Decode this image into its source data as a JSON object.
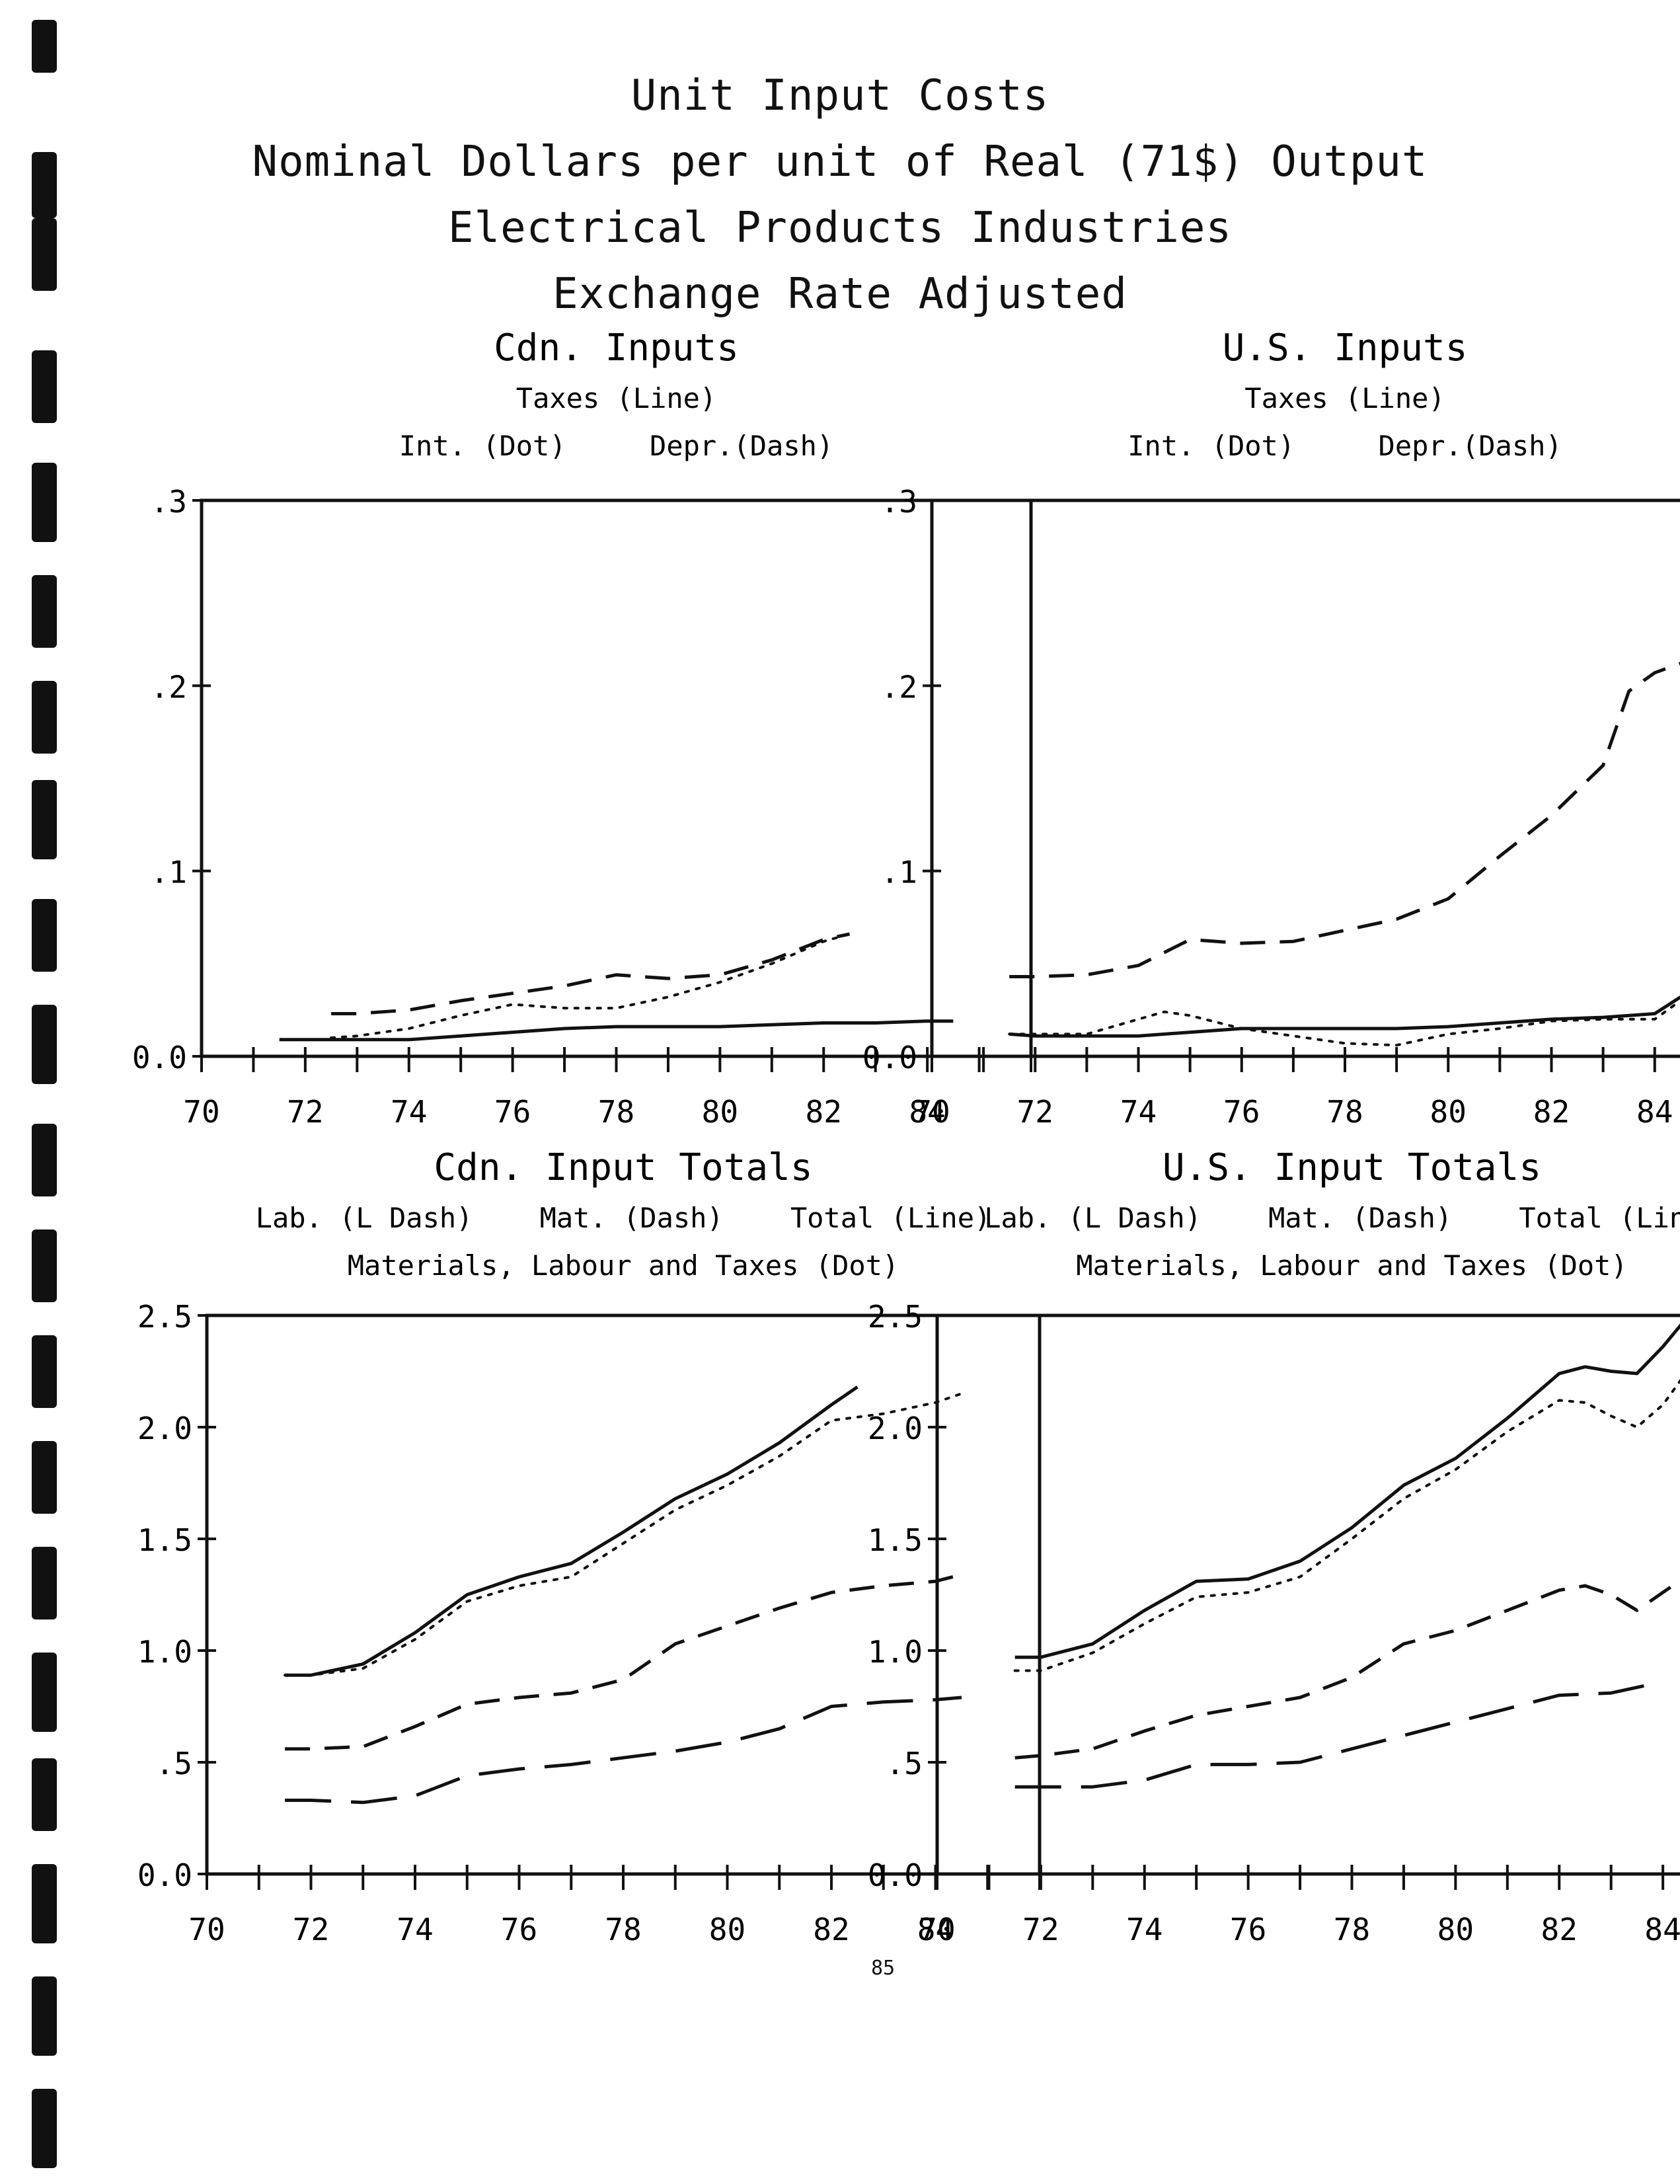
{
  "title_lines": [
    "Unit Input Costs",
    "Nominal Dollars per unit of Real (71$) Output",
    "Electrical Products Industries",
    "Exchange Rate Adjusted"
  ],
  "page_number": "85",
  "chart_data": [
    {
      "type": "line",
      "title": "Cdn. Inputs",
      "legend_lines": [
        "Taxes (Line)",
        "Int. (Dot)     Depr.(Dash)"
      ],
      "xlim": [
        70,
        86
      ],
      "ylim": [
        0,
        0.3
      ],
      "x_ticks": [
        "70",
        "72",
        "74",
        "76",
        "78",
        "80",
        "82",
        "84"
      ],
      "y_ticks": [
        "0.0",
        ".1",
        ".2",
        ".3"
      ],
      "y_tick_values": [
        0,
        0.1,
        0.2,
        0.3
      ],
      "series": [
        {
          "name": "Taxes",
          "style": "solid",
          "x": [
            71.5,
            72,
            73,
            74,
            75,
            76,
            77,
            78,
            79,
            80,
            81,
            82,
            83,
            84,
            84.5
          ],
          "y": [
            0.009,
            0.009,
            0.009,
            0.009,
            0.011,
            0.013,
            0.015,
            0.016,
            0.016,
            0.016,
            0.017,
            0.018,
            0.018,
            0.019,
            0.019
          ]
        },
        {
          "name": "Int.",
          "style": "dot",
          "x": [
            72.5,
            73,
            74,
            75,
            76,
            77,
            78,
            79,
            80,
            81,
            82,
            82.5
          ],
          "y": [
            0.01,
            0.011,
            0.015,
            0.022,
            0.028,
            0.026,
            0.026,
            0.032,
            0.04,
            0.05,
            0.062,
            0.066
          ]
        },
        {
          "name": "Depr.",
          "style": "dash",
          "x": [
            72.5,
            73,
            74,
            75,
            76,
            77,
            78,
            79,
            80,
            81,
            82,
            82.5
          ],
          "y": [
            0.023,
            0.023,
            0.025,
            0.03,
            0.034,
            0.038,
            0.044,
            0.042,
            0.044,
            0.052,
            0.063,
            0.066
          ]
        }
      ]
    },
    {
      "type": "line",
      "title": "U.S. Inputs",
      "legend_lines": [
        "Taxes (Line)",
        "Int. (Dot)     Depr.(Dash)"
      ],
      "xlim": [
        70,
        86
      ],
      "ylim": [
        0,
        0.3
      ],
      "x_ticks": [
        "70",
        "72",
        "74",
        "76",
        "78",
        "80",
        "82",
        "84"
      ],
      "y_ticks": [
        "0.0",
        ".1",
        ".2",
        ".3"
      ],
      "y_tick_values": [
        0,
        0.1,
        0.2,
        0.3
      ],
      "series": [
        {
          "name": "Taxes",
          "style": "solid",
          "x": [
            71.5,
            72,
            73,
            74,
            75,
            76,
            77,
            78,
            79,
            80,
            81,
            82,
            83,
            84,
            84.5
          ],
          "y": [
            0.012,
            0.011,
            0.011,
            0.011,
            0.013,
            0.015,
            0.015,
            0.015,
            0.015,
            0.016,
            0.018,
            0.02,
            0.021,
            0.023,
            0.032
          ]
        },
        {
          "name": "Int.",
          "style": "dot",
          "x": [
            71.5,
            72,
            73,
            74,
            74.5,
            75,
            76,
            77,
            78,
            79,
            80,
            81,
            82,
            83,
            84,
            84.5
          ],
          "y": [
            0.012,
            0.012,
            0.012,
            0.02,
            0.024,
            0.022,
            0.015,
            0.011,
            0.007,
            0.006,
            0.012,
            0.015,
            0.019,
            0.02,
            0.02,
            0.03
          ]
        },
        {
          "name": "Depr.",
          "style": "dash",
          "x": [
            71.5,
            72,
            73,
            74,
            75,
            76,
            77,
            78,
            79,
            80,
            81,
            82,
            83,
            83.5,
            84,
            84.5
          ],
          "y": [
            0.043,
            0.043,
            0.044,
            0.049,
            0.063,
            0.061,
            0.062,
            0.068,
            0.074,
            0.085,
            0.108,
            0.13,
            0.157,
            0.197,
            0.207,
            0.212
          ]
        }
      ]
    },
    {
      "type": "line",
      "title": "Cdn. Input Totals",
      "legend_lines": [
        "Lab. (L Dash)    Mat. (Dash)    Total (Line)",
        "Materials, Labour and Taxes (Dot)"
      ],
      "xlim": [
        70,
        86
      ],
      "ylim": [
        0,
        2.5
      ],
      "x_ticks": [
        "70",
        "72",
        "74",
        "76",
        "78",
        "80",
        "82",
        "84"
      ],
      "y_ticks": [
        "0.0",
        ".5",
        "1.0",
        "1.5",
        "2.0",
        "2.5"
      ],
      "y_tick_values": [
        0,
        0.5,
        1.0,
        1.5,
        2.0,
        2.5
      ],
      "series": [
        {
          "name": "Lab.",
          "style": "ldash",
          "x": [
            71.5,
            72,
            73,
            74,
            75,
            76,
            77,
            78,
            79,
            80,
            81,
            82,
            83,
            84,
            84.5
          ],
          "y": [
            0.33,
            0.33,
            0.32,
            0.35,
            0.44,
            0.47,
            0.49,
            0.52,
            0.55,
            0.59,
            0.65,
            0.75,
            0.77,
            0.78,
            0.79
          ]
        },
        {
          "name": "Mat.",
          "style": "dash",
          "x": [
            71.5,
            72,
            73,
            74,
            75,
            76,
            77,
            78,
            79,
            80,
            81,
            82,
            83,
            84,
            84.5
          ],
          "y": [
            0.56,
            0.56,
            0.57,
            0.66,
            0.76,
            0.79,
            0.81,
            0.87,
            1.03,
            1.11,
            1.19,
            1.26,
            1.29,
            1.31,
            1.34
          ]
        },
        {
          "name": "Total",
          "style": "solid",
          "x": [
            71.5,
            72,
            73,
            74,
            75,
            76,
            77,
            78,
            79,
            80,
            81,
            82,
            82.5
          ],
          "y": [
            0.89,
            0.89,
            0.94,
            1.08,
            1.25,
            1.33,
            1.39,
            1.53,
            1.68,
            1.79,
            1.93,
            2.1,
            2.18
          ]
        },
        {
          "name": "Materials, Labour and Taxes",
          "style": "dot",
          "x": [
            71.5,
            72,
            73,
            74,
            75,
            76,
            77,
            78,
            79,
            80,
            81,
            82,
            83,
            84,
            84.5
          ],
          "y": [
            0.89,
            0.89,
            0.92,
            1.05,
            1.22,
            1.29,
            1.33,
            1.48,
            1.63,
            1.74,
            1.87,
            2.03,
            2.06,
            2.11,
            2.15
          ]
        }
      ]
    },
    {
      "type": "line",
      "title": "U.S. Input Totals",
      "legend_lines": [
        "Lab. (L Dash)    Mat. (Dash)    Total (Line)",
        "Materials, Labour and Taxes (Dot)"
      ],
      "xlim": [
        70,
        86
      ],
      "ylim": [
        0,
        2.5
      ],
      "x_ticks": [
        "70",
        "72",
        "74",
        "76",
        "78",
        "80",
        "82",
        "84"
      ],
      "y_ticks": [
        "0.0",
        ".5",
        "1.0",
        "1.5",
        "2.0",
        "2.5"
      ],
      "y_tick_values": [
        0,
        0.5,
        1.0,
        1.5,
        2.0,
        2.5
      ],
      "series": [
        {
          "name": "Lab.",
          "style": "ldash",
          "x": [
            71.5,
            72,
            73,
            74,
            75,
            76,
            77,
            78,
            79,
            80,
            81,
            82,
            83,
            84
          ],
          "y": [
            0.39,
            0.39,
            0.39,
            0.42,
            0.49,
            0.49,
            0.5,
            0.56,
            0.62,
            0.68,
            0.74,
            0.8,
            0.81,
            0.86
          ]
        },
        {
          "name": "Mat.",
          "style": "dash",
          "x": [
            71.5,
            72,
            73,
            74,
            75,
            76,
            77,
            78,
            79,
            80,
            81,
            82,
            82.5,
            83,
            83.5,
            84,
            84.5
          ],
          "y": [
            0.52,
            0.53,
            0.56,
            0.64,
            0.71,
            0.75,
            0.79,
            0.88,
            1.03,
            1.09,
            1.18,
            1.27,
            1.29,
            1.25,
            1.18,
            1.26,
            1.34
          ]
        },
        {
          "name": "Total",
          "style": "solid",
          "x": [
            71.5,
            72,
            73,
            74,
            75,
            76,
            77,
            78,
            79,
            80,
            81,
            82,
            82.5,
            83,
            83.5,
            84,
            84.5
          ],
          "y": [
            0.97,
            0.97,
            1.03,
            1.18,
            1.31,
            1.32,
            1.4,
            1.55,
            1.74,
            1.86,
            2.04,
            2.24,
            2.27,
            2.25,
            2.24,
            2.36,
            2.5
          ]
        },
        {
          "name": "Materials, Labour and Taxes",
          "style": "dot",
          "x": [
            71.5,
            72,
            73,
            74,
            75,
            76,
            77,
            78,
            79,
            80,
            81,
            82,
            82.5,
            83,
            83.5,
            84,
            84.5
          ],
          "y": [
            0.91,
            0.91,
            0.99,
            1.12,
            1.24,
            1.26,
            1.33,
            1.5,
            1.68,
            1.81,
            1.98,
            2.12,
            2.11,
            2.05,
            2.0,
            2.1,
            2.26
          ]
        }
      ]
    }
  ]
}
